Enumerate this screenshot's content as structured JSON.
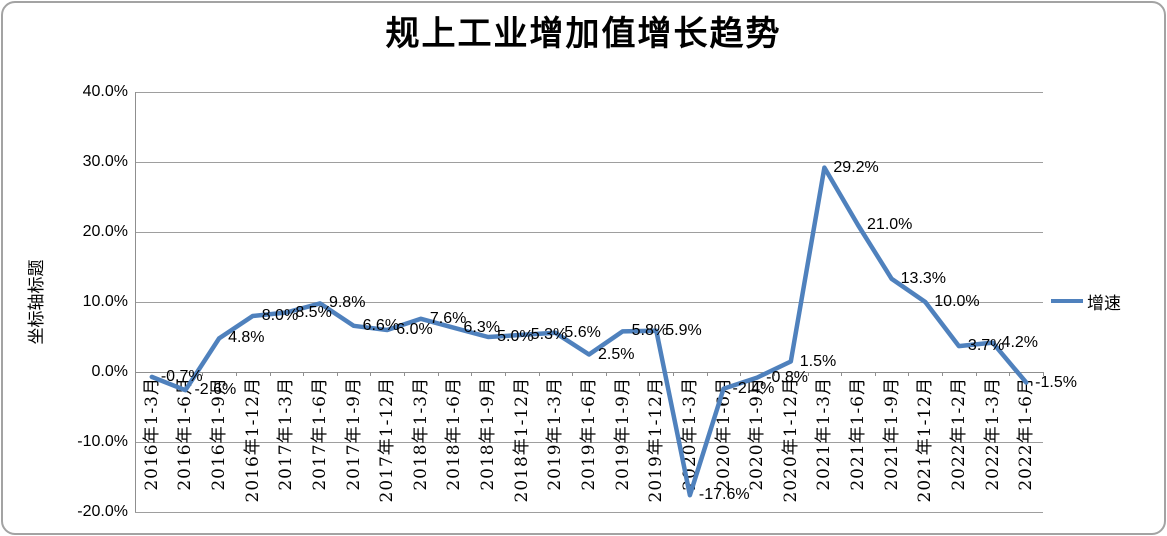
{
  "chart_data": {
    "type": "line",
    "title": "规上工业增加值增长趋势",
    "xlabel": "",
    "ylabel": "坐标轴标题",
    "ylim": [
      -20,
      40
    ],
    "ytick_step": 10,
    "ytick_labels": [
      "40.0%",
      "30.0%",
      "20.0%",
      "10.0%",
      "0.0%",
      "-10.0%",
      "-20.0%"
    ],
    "grid": true,
    "legend_position": "right",
    "categories": [
      "2016年1-3月",
      "2016年1-6月",
      "2016年1-9月",
      "2016年1-12月",
      "2017年1-3月",
      "2017年1-6月",
      "2017年1-9月",
      "2017年1-12月",
      "2018年1-3月",
      "2018年1-6月",
      "2018年1-9月",
      "2018年1-12月",
      "2019年1-3月",
      "2019年1-6月",
      "2019年1-9月",
      "2019年1-12月",
      "2020年1-3月",
      "2020年1-6月",
      "2020年1-9月",
      "2020年1-12月",
      "2021年1-3月",
      "2021年1-6月",
      "2021年1-9月",
      "2021年1-12月",
      "2022年1-2月",
      "2022年1-3月",
      "2022年1-6月"
    ],
    "series": [
      {
        "name": "增速",
        "color": "#4F81BD",
        "values": [
          -0.7,
          -2.6,
          4.8,
          8.0,
          8.5,
          9.8,
          6.6,
          6.0,
          7.6,
          6.3,
          5.0,
          5.3,
          5.6,
          2.5,
          5.8,
          5.9,
          -17.6,
          -2.4,
          -0.8,
          1.5,
          29.2,
          21.0,
          13.3,
          10.0,
          3.7,
          4.2,
          -1.5
        ],
        "point_labels": [
          "-0.7%",
          "-2.6%",
          "4.8%",
          "8.0%",
          "8.5%",
          "9.8%",
          "6.6%",
          "6.0%",
          "7.6%",
          "6.3%",
          "5.0%",
          "5.3%",
          "5.6%",
          "2.5%",
          "5.8%",
          "5.9%",
          "-17.6%",
          "-2.4%",
          "-0.8%",
          "1.5%",
          "29.2%",
          "21.0%",
          "13.3%",
          "10.0%",
          "3.7%",
          "4.2%",
          "-1.5%"
        ]
      }
    ]
  }
}
